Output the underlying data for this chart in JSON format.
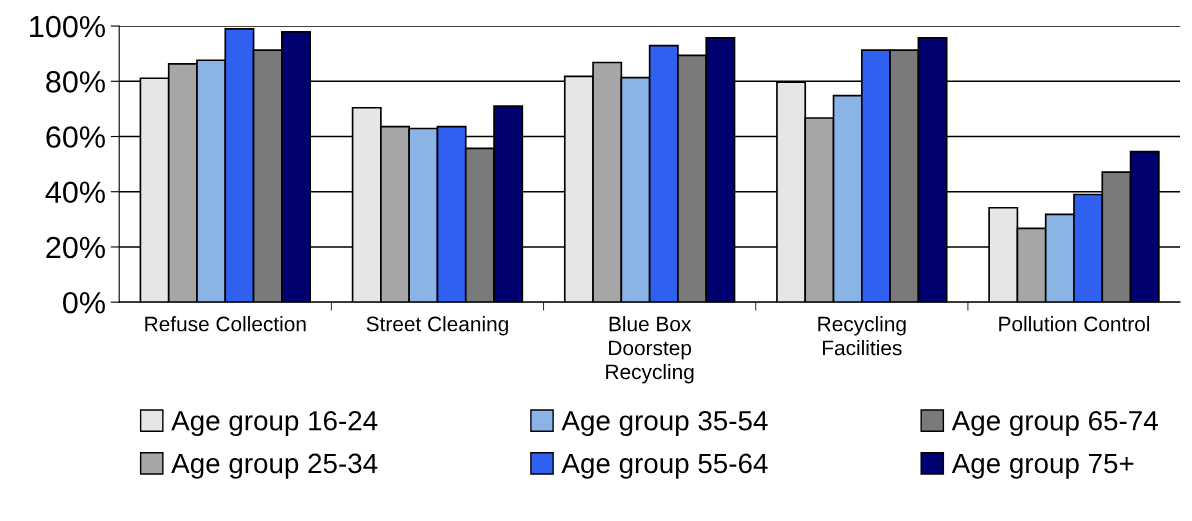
{
  "chart_data": {
    "type": "bar",
    "categories": [
      "Refuse Collection",
      "Street Cleaning",
      "Blue Box\nDoorstep\nRecycling",
      "Recycling\nFacilities",
      "Pollution Control"
    ],
    "series": [
      {
        "name": "Age group 16-24",
        "color": "#e6e6e6",
        "values": [
          81.1,
          70.4,
          81.8,
          79.7,
          34.2
        ]
      },
      {
        "name": "Age group 25-34",
        "color": "#a6a6a6",
        "values": [
          86.3,
          63.6,
          86.8,
          66.7,
          26.7
        ]
      },
      {
        "name": "Age group 35-54",
        "color": "#8ab4e6",
        "values": [
          87.6,
          62.9,
          81.3,
          74.8,
          31.8
        ]
      },
      {
        "name": "Age group 55-64",
        "color": "#3060f0",
        "values": [
          99,
          63.6,
          92.9,
          91.3,
          39
        ]
      },
      {
        "name": "Age group 65-74",
        "color": "#7a7a7a",
        "values": [
          91.3,
          55.7,
          89.4,
          91.3,
          47.1
        ]
      },
      {
        "name": "Age group 75+",
        "color": "#000070",
        "values": [
          97.9,
          71,
          95.7,
          95.7,
          54.5
        ]
      }
    ],
    "ylim": [
      0,
      100
    ],
    "yticks": [
      {
        "value": 0,
        "label": "0%"
      },
      {
        "value": 20,
        "label": "20%"
      },
      {
        "value": 40,
        "label": "40%"
      },
      {
        "value": 60,
        "label": "60%"
      },
      {
        "value": 80,
        "label": "80%"
      },
      {
        "value": 100,
        "label": "100%"
      }
    ],
    "grid": "y",
    "legend": "bottom"
  }
}
